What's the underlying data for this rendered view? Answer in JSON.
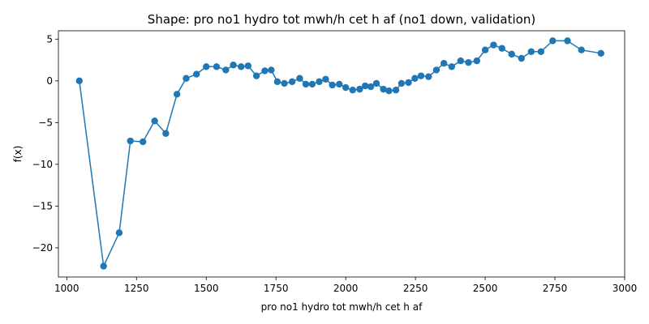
{
  "chart_data": {
    "type": "line",
    "title": "Shape: pro no1 hydro tot mwh/h cet h af (no1 down, validation)",
    "xlabel": "pro no1 hydro tot mwh/h cet h af",
    "ylabel": "f(x)",
    "xlim": [
      970,
      3000
    ],
    "ylim": [
      -23.5,
      6.0
    ],
    "xticks": [
      1000,
      1250,
      1500,
      1750,
      2000,
      2250,
      2500,
      2750,
      3000
    ],
    "yticks": [
      -20,
      -15,
      -10,
      -5,
      0,
      5
    ],
    "xtick_labels": [
      "1000",
      "1250",
      "1500",
      "1750",
      "2000",
      "2250",
      "2500",
      "2750",
      "3000"
    ],
    "ytick_labels": [
      "−20",
      "−15",
      "−10",
      "−5",
      "0",
      "5"
    ],
    "grid": false,
    "colors": {
      "series": "#1f77b4"
    },
    "series": [
      {
        "x": [
          1045,
          1132,
          1188,
          1228,
          1273,
          1315,
          1355,
          1395,
          1428,
          1465,
          1500,
          1537,
          1570,
          1597,
          1625,
          1650,
          1680,
          1710,
          1733,
          1755,
          1780,
          1808,
          1835,
          1857,
          1880,
          1905,
          1928,
          1952,
          1977,
          2000,
          2025,
          2050,
          2070,
          2090,
          2110,
          2135,
          2155,
          2180,
          2200,
          2225,
          2248,
          2270,
          2297,
          2325,
          2352,
          2380,
          2412,
          2440,
          2470,
          2500,
          2530,
          2560,
          2595,
          2630,
          2665,
          2700,
          2742,
          2795,
          2845,
          2915
        ],
        "y": [
          0.0,
          -22.2,
          -18.2,
          -7.2,
          -7.3,
          -4.8,
          -6.3,
          -1.6,
          0.3,
          0.8,
          1.7,
          1.7,
          1.3,
          1.9,
          1.7,
          1.8,
          0.6,
          1.2,
          1.3,
          -0.1,
          -0.3,
          -0.1,
          0.3,
          -0.4,
          -0.4,
          -0.1,
          0.2,
          -0.5,
          -0.4,
          -0.8,
          -1.1,
          -1.0,
          -0.6,
          -0.7,
          -0.3,
          -1.0,
          -1.2,
          -1.1,
          -0.3,
          -0.2,
          0.3,
          0.6,
          0.5,
          1.3,
          2.1,
          1.7,
          2.4,
          2.2,
          2.4,
          3.7,
          4.3,
          3.9,
          3.2,
          2.7,
          3.5,
          3.5,
          4.8,
          4.8,
          3.7,
          3.3
        ]
      }
    ]
  }
}
